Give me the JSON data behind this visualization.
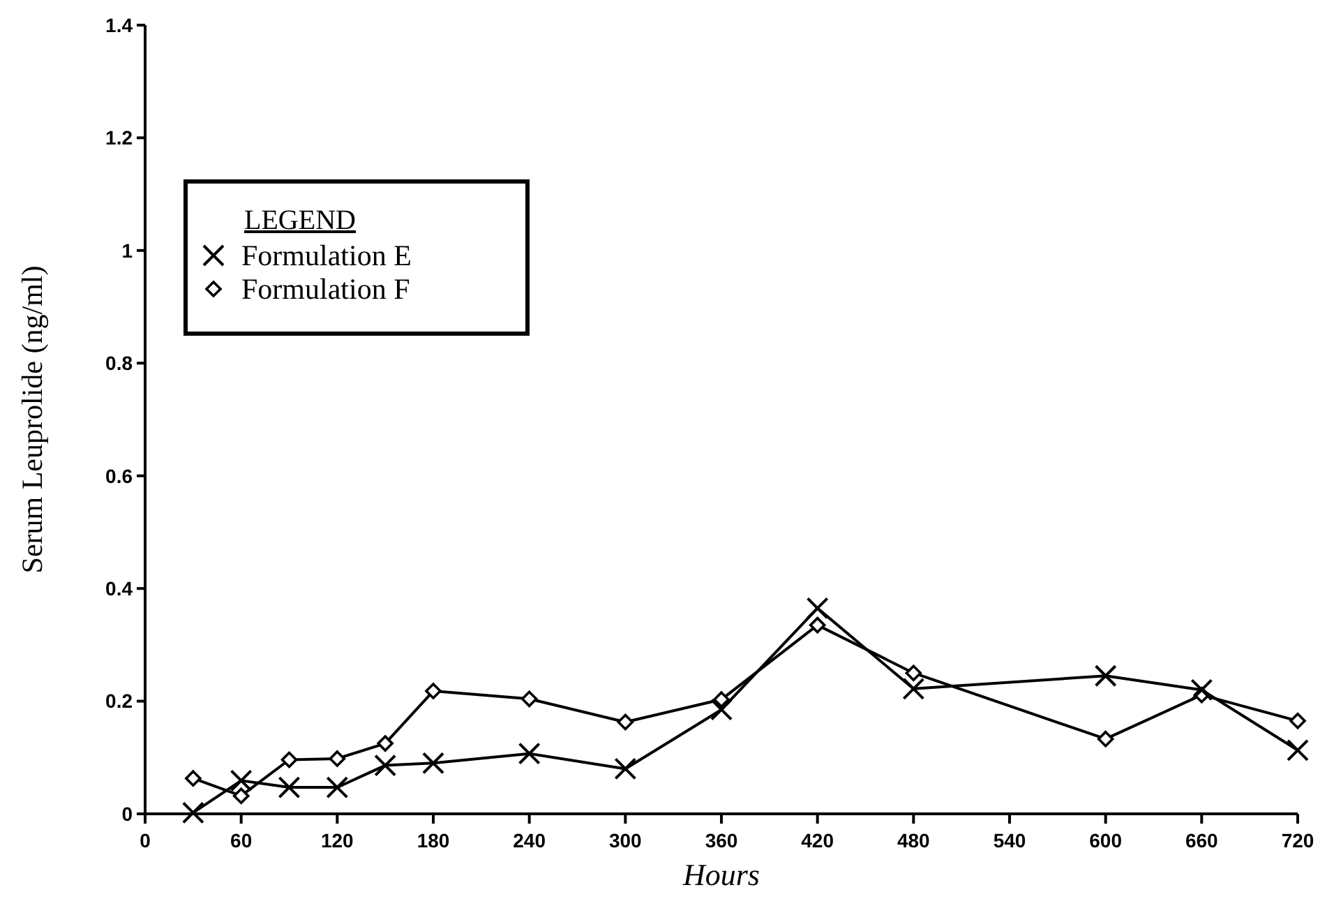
{
  "chart_data": {
    "type": "line",
    "xlabel": "Hours",
    "ylabel": "Serum Leuprolide (ng/ml)",
    "legend_title": "LEGEND",
    "legend": "top left",
    "grid": false,
    "line_style": "solid",
    "xlim": [
      0,
      720
    ],
    "xticks": [
      0,
      60,
      120,
      180,
      240,
      300,
      360,
      420,
      480,
      540,
      600,
      660,
      720
    ],
    "ylim": [
      0,
      1.4
    ],
    "yticks": [
      0,
      0.2,
      0.4,
      0.6,
      0.8,
      1,
      1.2,
      1.4
    ],
    "series": [
      {
        "name": "Formulation E",
        "color": "#000000",
        "marker": "cross",
        "x": [
          30,
          60,
          90,
          120,
          150,
          180,
          240,
          300,
          360,
          420,
          480,
          600,
          660,
          720
        ],
        "values": [
          0.002,
          0.059,
          0.047,
          0.047,
          0.086,
          0.09,
          0.107,
          0.08,
          0.185,
          0.365,
          0.222,
          0.245,
          0.22,
          0.113
        ]
      },
      {
        "name": "Formulation F",
        "color": "#000000",
        "marker": "diamond",
        "x": [
          30,
          60,
          90,
          120,
          150,
          180,
          240,
          300,
          360,
          420,
          480,
          600,
          660,
          720
        ],
        "values": [
          0.063,
          0.032,
          0.096,
          0.098,
          0.125,
          0.218,
          0.204,
          0.163,
          0.203,
          0.335,
          0.25,
          0.133,
          0.211,
          0.165
        ]
      }
    ]
  }
}
